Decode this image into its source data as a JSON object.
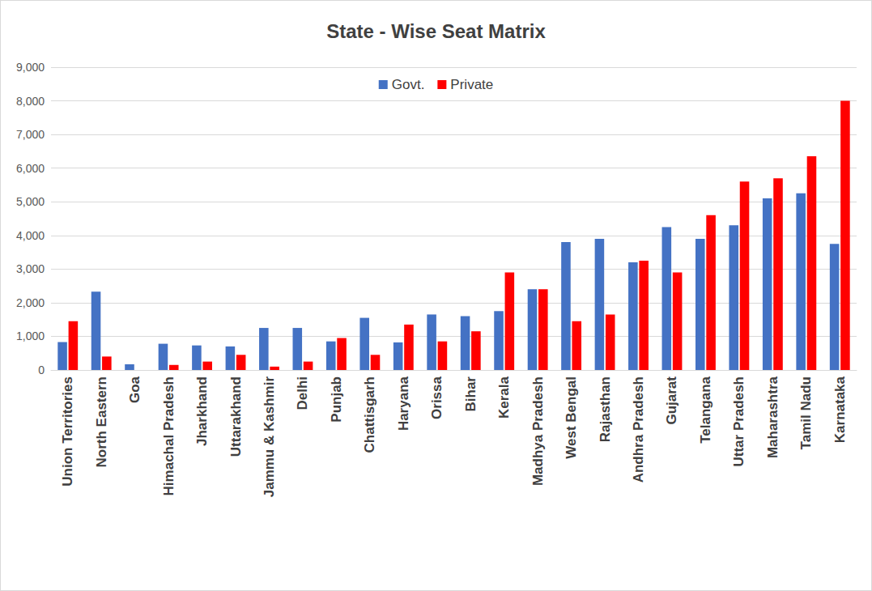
{
  "chart_data": {
    "type": "bar",
    "title": "State - Wise Seat Matrix",
    "categories": [
      "Union Territories",
      "North Eastern",
      "Goa",
      "Himachal Pradesh",
      "Jharkhand",
      "Uttarakhand",
      "Jammu & Kashmir",
      "Delhi",
      "Punjab",
      "Chattisgarh",
      "Haryana",
      "Orissa",
      "Bihar",
      "Kerala",
      "Madhya Pradesh",
      "West Bengal",
      "Rajasthan",
      "Andhra Pradesh",
      "Gujarat",
      "Telangana",
      "Uttar Pradesh",
      "Maharashtra",
      "Tamil Nadu",
      "Karnataka"
    ],
    "series": [
      {
        "name": "Govt.",
        "color": "#4472c4",
        "values": [
          830,
          2330,
          170,
          780,
          730,
          700,
          1250,
          1250,
          850,
          1550,
          820,
          1650,
          1600,
          1750,
          2400,
          3800,
          3900,
          3200,
          4250,
          3900,
          4300,
          5100,
          5250,
          3750
        ]
      },
      {
        "name": "Private",
        "color": "#ff0000",
        "values": [
          1450,
          400,
          0,
          150,
          250,
          450,
          100,
          250,
          950,
          450,
          1350,
          850,
          1150,
          2900,
          2400,
          1450,
          1650,
          3250,
          2900,
          4600,
          5600,
          5700,
          6350,
          8000
        ]
      }
    ],
    "ylim": [
      0,
      9000
    ],
    "yticks": [
      0,
      1000,
      2000,
      3000,
      4000,
      5000,
      6000,
      7000,
      8000,
      9000
    ],
    "grid": true,
    "legend": "top"
  }
}
